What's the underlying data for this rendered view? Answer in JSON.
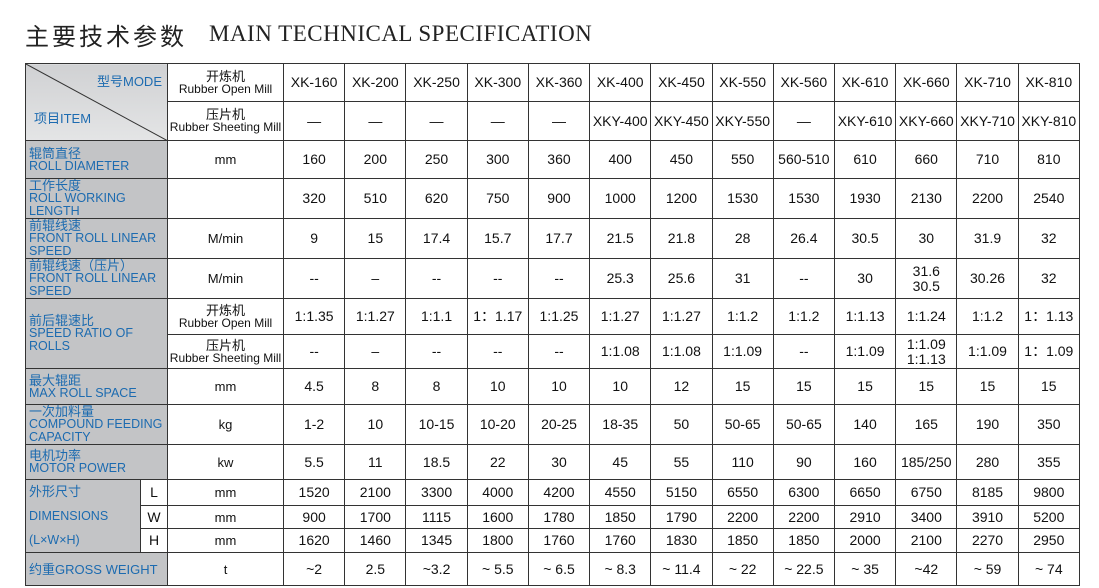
{
  "header": {
    "title_cn": "主要技术参数",
    "title_en": "MAIN TECHNICAL SPECIFICATION"
  },
  "table": {
    "corner": {
      "model": "型号MODE",
      "item": "项目ITEM"
    },
    "model_rows": [
      {
        "name": [
          "开炼机",
          "Rubber Open Mill"
        ],
        "values": [
          "XK-160",
          "XK-200",
          "XK-250",
          "XK-300",
          "XK-360",
          "XK-400",
          "XK-450",
          "XK-550",
          "XK-560",
          "XK-610",
          "XK-660",
          "XK-710",
          "XK-810"
        ]
      },
      {
        "name": [
          "压片机",
          "Rubber Sheeting Mill"
        ],
        "values": [
          "—",
          "—",
          "—",
          "—",
          "—",
          "XKY-400",
          "XKY-450",
          "XKY-550",
          "—",
          "XKY-610",
          "XKY-660",
          "XKY-710",
          "XKY-810"
        ]
      }
    ],
    "groups": [
      {
        "label": [
          "辊筒直径",
          "ROLL DIAMETER"
        ],
        "subrows": [
          {
            "unit": "mm",
            "values": [
              160,
              200,
              250,
              300,
              360,
              400,
              450,
              550,
              "560-510",
              610,
              660,
              710,
              810
            ]
          }
        ]
      },
      {
        "label": [
          "工作长度",
          "ROLL WORKING LENGTH"
        ],
        "subrows": [
          {
            "values": [
              320,
              510,
              620,
              750,
              900,
              1000,
              1200,
              1530,
              1530,
              1930,
              2130,
              2200,
              2540
            ]
          }
        ]
      },
      {
        "label": [
          "前辊线速",
          "FRONT ROLL LINEAR SPEED"
        ],
        "subrows": [
          {
            "unit": "M/min",
            "values": [
              9,
              15,
              17.4,
              15.7,
              17.7,
              21.5,
              21.8,
              28,
              26.4,
              30.5,
              30,
              31.9,
              32
            ]
          }
        ]
      },
      {
        "label": [
          "前辊线速（压片）",
          "FRONT ROLL LINEAR SPEED"
        ],
        "subrows": [
          {
            "unit": "M/min",
            "values": [
              "--",
              "–",
              "--",
              "--",
              "--",
              25.3,
              25.6,
              31,
              "--",
              30,
              [
                "31.6",
                "30.5"
              ],
              30.26,
              32
            ]
          }
        ]
      },
      {
        "label": [
          "前后辊速比",
          "SPEED RATIO OF ROLLS"
        ],
        "subrows": [
          {
            "unit": [
              "开炼机",
              "Rubber Open Mill"
            ],
            "values": [
              "1:1.35",
              "1:1.27",
              "1:1.1",
              "1：1.17",
              "1:1.25",
              "1:1.27",
              "1:1.27",
              "1:1.2",
              "1:1.2",
              "1:1.13",
              "1:1.24",
              "1:1.2",
              "1：1.13"
            ]
          },
          {
            "unit": [
              "压片机",
              "Rubber Sheeting Mill"
            ],
            "values": [
              "--",
              "–",
              "--",
              "--",
              "--",
              "1:1.08",
              "1:1.08",
              "1:1.09",
              "--",
              "1:1.09",
              [
                "1:1.09",
                "1:1.13"
              ],
              "1:1.09",
              "1：1.09"
            ]
          }
        ]
      },
      {
        "label": [
          "最大辊距",
          "MAX ROLL SPACE"
        ],
        "subrows": [
          {
            "unit": "mm",
            "values": [
              4.5,
              8,
              8,
              10,
              10,
              10,
              12,
              15,
              15,
              15,
              15,
              15,
              15
            ]
          }
        ]
      },
      {
        "label": [
          "一次加料量",
          "COMPOUND FEEDING CAPACITY"
        ],
        "subrows": [
          {
            "unit": "kg",
            "values": [
              "1-2",
              10,
              "10-15",
              "10-20",
              "20-25",
              "18-35",
              50,
              "50-65",
              "50-65",
              140,
              165,
              190,
              350
            ]
          }
        ]
      },
      {
        "label": [
          "电机功率",
          "MOTOR POWER"
        ],
        "subrows": [
          {
            "unit": "kw",
            "values": [
              5.5,
              11,
              18.5,
              22,
              30,
              45,
              55,
              110,
              90,
              160,
              "185/250",
              280,
              355
            ]
          }
        ]
      },
      {
        "label": [
          "外形尺寸",
          "DIMENSIONS",
          "(L×W×H)"
        ],
        "subrows": [
          {
            "key": "L",
            "unit": "mm",
            "values": [
              1520,
              2100,
              3300,
              4000,
              4200,
              4550,
              5150,
              6550,
              6300,
              6650,
              6750,
              8185,
              9800
            ]
          },
          {
            "key": "W",
            "unit": "mm",
            "values": [
              900,
              1700,
              1115,
              1600,
              1780,
              1850,
              1790,
              2200,
              2200,
              2910,
              3400,
              3910,
              5200
            ]
          },
          {
            "key": "H",
            "unit": "mm",
            "values": [
              1620,
              1460,
              1345,
              1800,
              1760,
              1760,
              1830,
              1850,
              1850,
              2000,
              2100,
              2270,
              2950
            ]
          }
        ]
      },
      {
        "label": [
          "约重GROSS WEIGHT"
        ],
        "subrows": [
          {
            "unit": "t",
            "values": [
              "~2",
              "2.5",
              "~3.2",
              "~ 5.5",
              "~ 6.5",
              "~ 8.3",
              "~ 11.4",
              "~ 22",
              "~ 22.5",
              "~ 35",
              "~42",
              "~ 59",
              "~ 74"
            ]
          }
        ]
      }
    ]
  }
}
